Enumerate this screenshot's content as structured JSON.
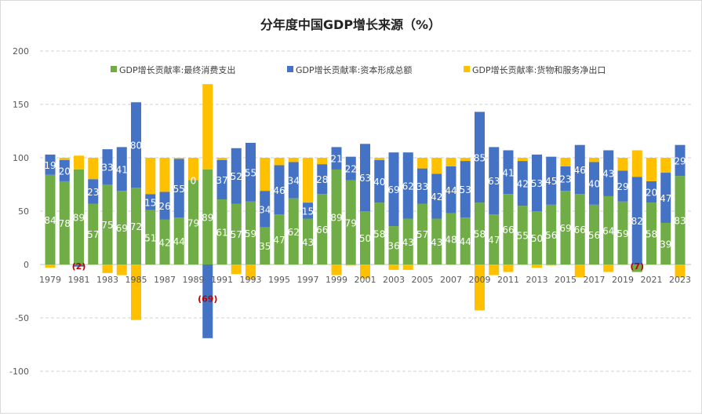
{
  "chart_data": {
    "type": "bar",
    "stacked": true,
    "title": "分年度中国GDP增长来源（%）",
    "xlabel": "",
    "ylabel": "",
    "ylim": [
      -120,
      200
    ],
    "yticks": [
      200,
      150,
      100,
      50,
      0,
      -50,
      -100
    ],
    "grid": true,
    "legend_position": "top",
    "categories": [
      1979,
      1980,
      1981,
      1982,
      1983,
      1984,
      1985,
      1986,
      1987,
      1988,
      1989,
      1990,
      1991,
      1992,
      1993,
      1994,
      1995,
      1996,
      1997,
      1998,
      1999,
      2000,
      2001,
      2002,
      2003,
      2004,
      2005,
      2006,
      2007,
      2008,
      2009,
      2010,
      2011,
      2012,
      2013,
      2014,
      2015,
      2016,
      2017,
      2018,
      2019,
      2020,
      2021,
      2022,
      2023
    ],
    "series": [
      {
        "name": "GDP增长贡献率:最终消费支出",
        "color": "#70ad47",
        "show_labels": true,
        "values": [
          84,
          78,
          89,
          57,
          75,
          69,
          72,
          51,
          42,
          44,
          79,
          89,
          61,
          57,
          59,
          35,
          47,
          62,
          43,
          66,
          89,
          79,
          50,
          58,
          36,
          43,
          57,
          43,
          48,
          44,
          58,
          47,
          66,
          55,
          50,
          56,
          69,
          66,
          56,
          64,
          59,
          -7,
          58,
          39,
          83
        ]
      },
      {
        "name": "GDP增长贡献率:资本形成总额",
        "color": "#4472c4",
        "show_labels": true,
        "values": [
          19,
          20,
          -2,
          23,
          33,
          41,
          80,
          15,
          26,
          55,
          0,
          -69,
          37,
          52,
          55,
          34,
          46,
          34,
          15,
          28,
          21,
          22,
          63,
          40,
          69,
          62,
          33,
          42,
          44,
          53,
          85,
          63,
          41,
          42,
          53,
          45,
          23,
          46,
          40,
          43,
          29,
          82,
          20,
          47,
          29
        ]
      },
      {
        "name": "GDP增长贡献率:货物和服务净出口",
        "color": "#ffc000",
        "show_labels": false,
        "values": [
          -3,
          2,
          13,
          20,
          -8,
          -10,
          -52,
          34,
          32,
          1,
          21,
          80,
          2,
          -9,
          -14,
          31,
          7,
          4,
          42,
          6,
          -10,
          -1,
          -13,
          2,
          -5,
          -5,
          10,
          15,
          8,
          3,
          -43,
          -10,
          -7,
          3,
          -3,
          -1,
          8,
          -12,
          4,
          -7,
          12,
          25,
          22,
          14,
          -12
        ]
      }
    ]
  }
}
